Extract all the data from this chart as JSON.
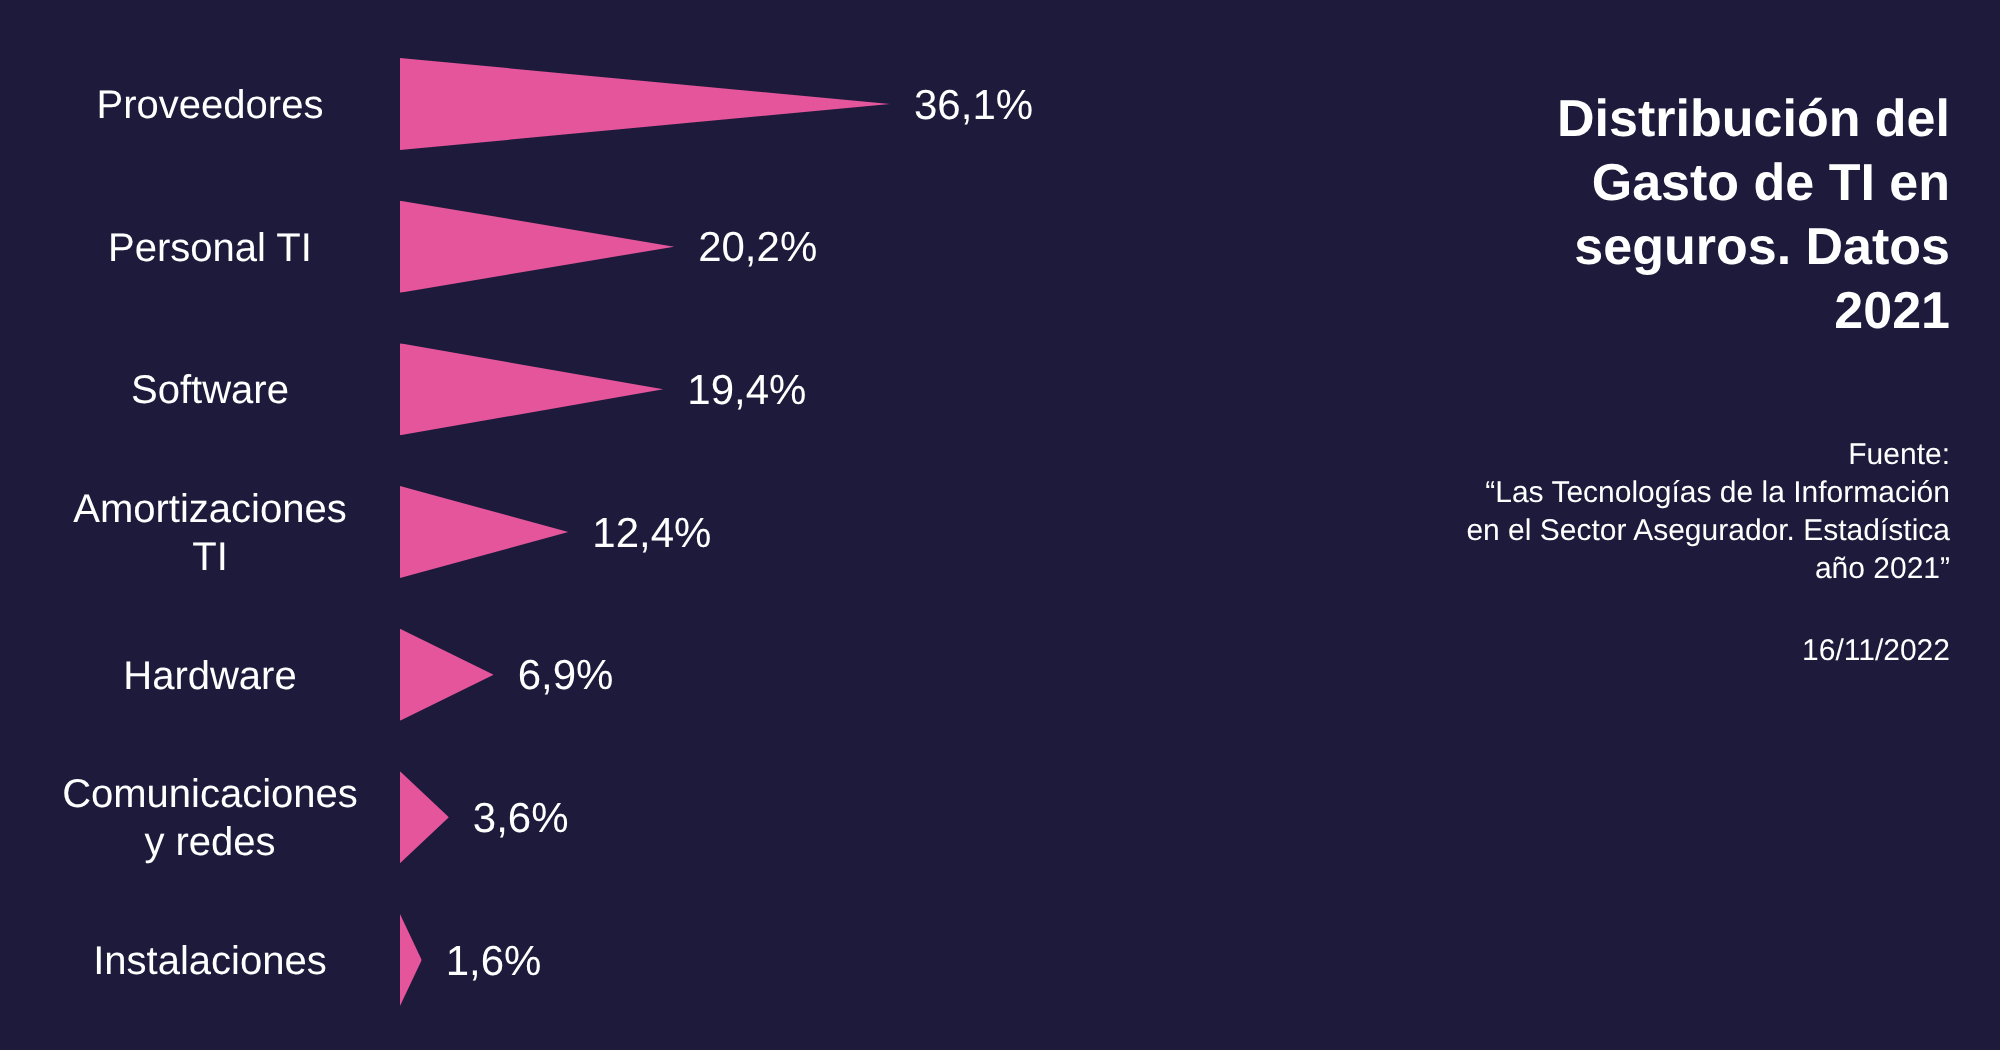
{
  "chart_data": {
    "type": "bar",
    "orientation": "horizontal",
    "title": "Distribución del Gasto de TI en seguros. Datos 2021",
    "categories": [
      "Proveedores",
      "Personal TI",
      "Software",
      "Amortizaciones TI",
      "Hardware",
      "Comunicaciones y redes",
      "Instalaciones"
    ],
    "values": [
      36.1,
      20.2,
      19.4,
      12.4,
      6.9,
      3.6,
      1.6
    ],
    "value_labels": [
      "36,1%",
      "20,2%",
      "19,4%",
      "12,4%",
      "6,9%",
      "3,6%",
      "1,6%"
    ],
    "color": "#e4559b",
    "annotations": [
      "Fuente:",
      "“Las Tecnologías de la Información en el Sector Asegurador. Estadística año 2021”",
      "16/11/2022"
    ]
  }
}
